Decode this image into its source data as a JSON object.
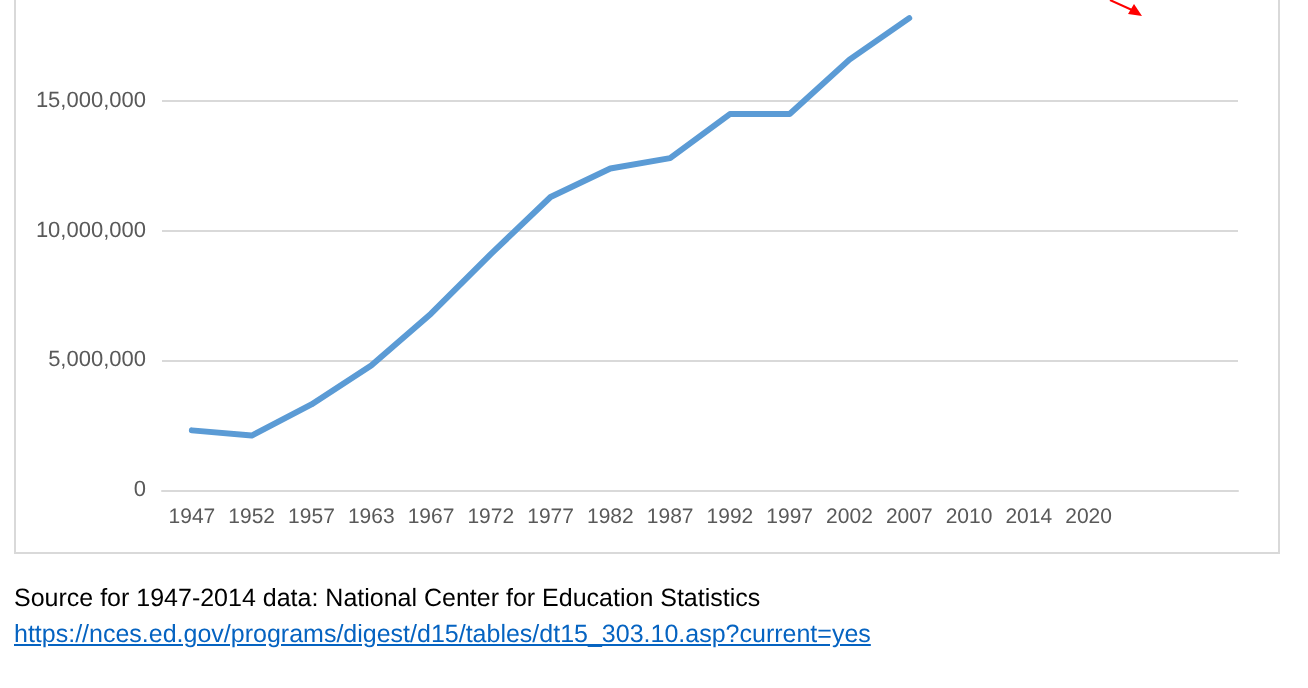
{
  "chart_data": {
    "type": "line",
    "categories": [
      "1947",
      "1952",
      "1957",
      "1963",
      "1967",
      "1972",
      "1977",
      "1982",
      "1987",
      "1992",
      "1997",
      "2002",
      "2007",
      "2010",
      "2014",
      "2020",
      null,
      null
    ],
    "series": [
      {
        "color": "#5b9bd5",
        "values": [
          2300000,
          2100000,
          3300000,
          4800000,
          6800000,
          9100000,
          11300000,
          12400000,
          12800000,
          14500000,
          14500000,
          16600000,
          18200000,
          null,
          null,
          null,
          null,
          null
        ]
      }
    ],
    "ylim": [
      0,
      18900000
    ],
    "yticks": [
      {
        "value": 0,
        "label": "0"
      },
      {
        "value": 5000000,
        "label": "5,000,000"
      },
      {
        "value": 10000000,
        "label": "10,000,000"
      },
      {
        "value": 15000000,
        "label": "15,000,000"
      }
    ],
    "grid": "y",
    "marker": "none",
    "line_style": "solid",
    "annotations": [
      "Source for 1947-2014 data: National Center for Education Statistics",
      "https://nces.ed.gov/programs/digest/d15/tables/dt15_303.10.asp?current=yes"
    ]
  }
}
